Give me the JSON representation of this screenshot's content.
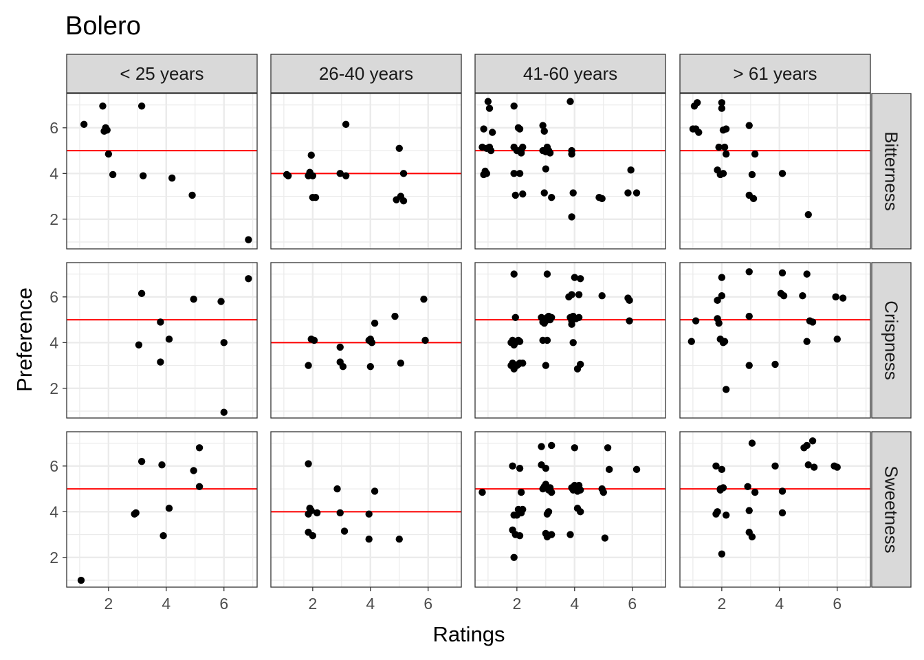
{
  "chart_data": {
    "type": "scatter",
    "title": "Bolero",
    "xlabel": "Ratings",
    "ylabel": "Preference",
    "facet_columns": [
      "< 25 years",
      "26-40 years",
      "41-60 years",
      "> 61 years"
    ],
    "facet_rows": [
      "Bitterness",
      "Crispness",
      "Sweetness"
    ],
    "xlim": [
      0.55,
      7.15
    ],
    "ylim": [
      0.7,
      7.5
    ],
    "x_ticks": [
      2,
      4,
      6
    ],
    "y_ticks": [
      2,
      4,
      6
    ],
    "grid": true,
    "reference_line_color": "#ff0000",
    "point_color": "#000000",
    "panels": [
      {
        "row": 0,
        "col": 0,
        "hline": 5,
        "points": [
          [
            1.15,
            6.15
          ],
          [
            1.8,
            6.95
          ],
          [
            1.85,
            5.85
          ],
          [
            1.9,
            6.0
          ],
          [
            1.95,
            5.9
          ],
          [
            2.0,
            4.85
          ],
          [
            2.15,
            3.95
          ],
          [
            3.15,
            6.95
          ],
          [
            3.2,
            3.9
          ],
          [
            4.2,
            3.8
          ],
          [
            4.9,
            3.05
          ],
          [
            6.85,
            1.1
          ]
        ]
      },
      {
        "row": 0,
        "col": 1,
        "hline": 4,
        "points": [
          [
            1.1,
            3.95
          ],
          [
            1.15,
            3.9
          ],
          [
            1.85,
            3.9
          ],
          [
            1.9,
            4.05
          ],
          [
            1.95,
            4.8
          ],
          [
            2.0,
            3.9
          ],
          [
            2.0,
            2.95
          ],
          [
            2.1,
            2.95
          ],
          [
            2.95,
            4.0
          ],
          [
            3.15,
            6.15
          ],
          [
            3.15,
            3.9
          ],
          [
            4.9,
            2.85
          ],
          [
            5.0,
            5.1
          ],
          [
            5.05,
            3.0
          ],
          [
            5.15,
            4.0
          ],
          [
            5.15,
            2.8
          ]
        ]
      },
      {
        "row": 1,
        "col": 0,
        "hline": 5,
        "points": [
          [
            3.05,
            3.9
          ],
          [
            3.15,
            6.15
          ],
          [
            3.8,
            4.9
          ],
          [
            3.8,
            3.15
          ],
          [
            4.1,
            4.15
          ],
          [
            4.95,
            5.9
          ],
          [
            5.9,
            5.8
          ],
          [
            6.0,
            4.0
          ],
          [
            6.0,
            0.95
          ],
          [
            6.85,
            6.8
          ]
        ]
      },
      {
        "row": 1,
        "col": 1,
        "hline": 4,
        "points": [
          [
            1.85,
            3.0
          ],
          [
            1.95,
            4.15
          ],
          [
            2.05,
            4.1
          ],
          [
            2.95,
            3.8
          ],
          [
            2.95,
            3.15
          ],
          [
            3.05,
            2.95
          ],
          [
            3.95,
            4.1
          ],
          [
            4.0,
            4.15
          ],
          [
            4.05,
            4.0
          ],
          [
            4.0,
            2.95
          ],
          [
            4.15,
            4.85
          ],
          [
            4.85,
            5.15
          ],
          [
            5.05,
            3.1
          ],
          [
            5.85,
            5.9
          ],
          [
            5.9,
            4.1
          ]
        ]
      },
      {
        "row": 2,
        "col": 0,
        "hline": 5,
        "points": [
          [
            1.05,
            1.0
          ],
          [
            2.9,
            3.9
          ],
          [
            2.95,
            3.95
          ],
          [
            3.15,
            6.2
          ],
          [
            3.85,
            6.05
          ],
          [
            3.9,
            2.95
          ],
          [
            4.1,
            4.15
          ],
          [
            4.95,
            5.8
          ],
          [
            5.15,
            6.8
          ],
          [
            5.15,
            5.1
          ]
        ]
      },
      {
        "row": 2,
        "col": 1,
        "hline": 4,
        "points": [
          [
            1.85,
            6.1
          ],
          [
            1.85,
            3.9
          ],
          [
            1.85,
            3.1
          ],
          [
            1.9,
            4.15
          ],
          [
            1.95,
            4.05
          ],
          [
            2.0,
            2.95
          ],
          [
            2.15,
            3.95
          ],
          [
            2.85,
            5.0
          ],
          [
            2.95,
            3.95
          ],
          [
            3.1,
            3.15
          ],
          [
            3.95,
            3.9
          ],
          [
            3.95,
            2.8
          ],
          [
            4.15,
            4.9
          ],
          [
            5.0,
            2.8
          ]
        ]
      },
      {
        "row": 0,
        "col": 3,
        "hline": 5,
        "points": [
          [
            1.0,
            5.95
          ],
          [
            1.05,
            6.95
          ],
          [
            1.1,
            5.95
          ],
          [
            1.15,
            7.1
          ],
          [
            1.2,
            5.8
          ],
          [
            1.85,
            4.15
          ],
          [
            1.9,
            5.15
          ],
          [
            1.95,
            3.95
          ],
          [
            2.0,
            6.85
          ],
          [
            2.0,
            7.1
          ],
          [
            2.05,
            5.9
          ],
          [
            2.05,
            4.0
          ],
          [
            2.1,
            5.15
          ],
          [
            2.15,
            5.95
          ],
          [
            2.15,
            4.85
          ],
          [
            2.95,
            6.1
          ],
          [
            2.95,
            3.05
          ],
          [
            3.05,
            3.95
          ],
          [
            3.1,
            2.9
          ],
          [
            3.15,
            4.85
          ],
          [
            4.1,
            4.0
          ],
          [
            5.0,
            2.2
          ]
        ]
      },
      {
        "row": 1,
        "col": 3,
        "hline": 5,
        "points": [
          [
            0.95,
            4.05
          ],
          [
            1.1,
            4.95
          ],
          [
            1.85,
            5.85
          ],
          [
            1.85,
            5.05
          ],
          [
            1.9,
            4.85
          ],
          [
            1.95,
            4.15
          ],
          [
            2.0,
            6.85
          ],
          [
            2.0,
            6.05
          ],
          [
            2.05,
            4.0
          ],
          [
            2.1,
            4.05
          ],
          [
            2.15,
            1.95
          ],
          [
            2.95,
            7.1
          ],
          [
            2.95,
            5.15
          ],
          [
            2.95,
            3.0
          ],
          [
            3.85,
            3.05
          ],
          [
            4.05,
            6.15
          ],
          [
            4.1,
            7.05
          ],
          [
            4.15,
            6.05
          ],
          [
            4.8,
            6.05
          ],
          [
            4.95,
            7.0
          ],
          [
            4.95,
            4.05
          ],
          [
            5.05,
            4.95
          ],
          [
            5.15,
            4.9
          ],
          [
            5.95,
            6.0
          ],
          [
            6.0,
            4.15
          ],
          [
            6.2,
            5.95
          ]
        ]
      },
      {
        "row": 2,
        "col": 3,
        "hline": 5,
        "points": [
          [
            1.8,
            6.0
          ],
          [
            1.8,
            3.9
          ],
          [
            1.85,
            4.0
          ],
          [
            1.95,
            5.0
          ],
          [
            1.95,
            4.95
          ],
          [
            2.0,
            5.85
          ],
          [
            2.0,
            2.15
          ],
          [
            2.05,
            5.05
          ],
          [
            2.15,
            3.85
          ],
          [
            2.9,
            5.1
          ],
          [
            2.95,
            4.05
          ],
          [
            2.95,
            3.1
          ],
          [
            3.05,
            7.0
          ],
          [
            3.05,
            2.9
          ],
          [
            3.15,
            4.85
          ],
          [
            3.85,
            6.0
          ],
          [
            4.1,
            4.9
          ],
          [
            4.1,
            3.95
          ],
          [
            4.85,
            6.8
          ],
          [
            4.95,
            6.9
          ],
          [
            5.0,
            6.05
          ],
          [
            5.15,
            7.1
          ],
          [
            5.2,
            5.95
          ],
          [
            5.9,
            6.0
          ],
          [
            6.0,
            5.95
          ]
        ]
      },
      {
        "row": 0,
        "col": 2,
        "hline": 5,
        "points": [
          [
            0.8,
            5.15
          ],
          [
            0.85,
            5.95
          ],
          [
            0.85,
            3.95
          ],
          [
            0.9,
            4.1
          ],
          [
            0.95,
            5.1
          ],
          [
            0.95,
            4.0
          ],
          [
            1.0,
            7.15
          ],
          [
            1.05,
            6.85
          ],
          [
            1.05,
            5.15
          ],
          [
            1.1,
            5.0
          ],
          [
            1.15,
            5.8
          ],
          [
            1.9,
            6.95
          ],
          [
            1.9,
            5.15
          ],
          [
            1.9,
            4.0
          ],
          [
            1.95,
            3.05
          ],
          [
            2.0,
            5.0
          ],
          [
            2.05,
            6.0
          ],
          [
            2.1,
            5.95
          ],
          [
            2.1,
            4.0
          ],
          [
            2.15,
            5.05
          ],
          [
            2.15,
            4.9
          ],
          [
            2.2,
            5.15
          ],
          [
            2.2,
            3.1
          ],
          [
            2.9,
            6.1
          ],
          [
            2.9,
            5.0
          ],
          [
            2.95,
            5.85
          ],
          [
            2.95,
            3.15
          ],
          [
            3.0,
            4.2
          ],
          [
            3.0,
            4.95
          ],
          [
            3.05,
            5.15
          ],
          [
            3.1,
            5.0
          ],
          [
            3.15,
            4.9
          ],
          [
            3.2,
            2.95
          ],
          [
            3.85,
            7.15
          ],
          [
            3.9,
            5.0
          ],
          [
            3.9,
            4.85
          ],
          [
            3.95,
            3.15
          ],
          [
            3.9,
            2.1
          ],
          [
            4.85,
            2.95
          ],
          [
            4.95,
            2.9
          ],
          [
            5.85,
            3.15
          ],
          [
            5.95,
            4.15
          ],
          [
            6.15,
            3.15
          ]
        ]
      },
      {
        "row": 1,
        "col": 2,
        "hline": 5,
        "points": [
          [
            1.8,
            4.0
          ],
          [
            1.8,
            3.0
          ],
          [
            1.85,
            4.1
          ],
          [
            1.85,
            3.1
          ],
          [
            1.9,
            7.0
          ],
          [
            1.9,
            3.9
          ],
          [
            1.9,
            2.85
          ],
          [
            1.95,
            5.1
          ],
          [
            1.95,
            4.0
          ],
          [
            2.0,
            3.0
          ],
          [
            2.05,
            4.1
          ],
          [
            2.05,
            3.05
          ],
          [
            2.1,
            3.1
          ],
          [
            2.1,
            4.05
          ],
          [
            2.2,
            3.1
          ],
          [
            2.85,
            5.1
          ],
          [
            2.9,
            4.9
          ],
          [
            2.9,
            4.1
          ],
          [
            2.95,
            4.85
          ],
          [
            3.0,
            3.0
          ],
          [
            3.0,
            4.95
          ],
          [
            3.05,
            7.0
          ],
          [
            3.05,
            5.1
          ],
          [
            3.05,
            4.1
          ],
          [
            3.1,
            5.15
          ],
          [
            3.15,
            5.0
          ],
          [
            3.2,
            5.1
          ],
          [
            3.8,
            6.0
          ],
          [
            3.85,
            5.1
          ],
          [
            3.9,
            6.1
          ],
          [
            3.9,
            4.95
          ],
          [
            3.9,
            4.8
          ],
          [
            3.95,
            5.15
          ],
          [
            3.95,
            4.0
          ],
          [
            4.0,
            6.85
          ],
          [
            4.05,
            5.05
          ],
          [
            4.1,
            2.85
          ],
          [
            4.15,
            6.1
          ],
          [
            4.15,
            5.1
          ],
          [
            4.2,
            6.8
          ],
          [
            4.2,
            3.05
          ],
          [
            4.95,
            6.05
          ],
          [
            5.85,
            5.95
          ],
          [
            5.9,
            5.85
          ],
          [
            5.9,
            4.95
          ]
        ]
      },
      {
        "row": 2,
        "col": 2,
        "hline": 5,
        "points": [
          [
            0.8,
            4.85
          ],
          [
            1.85,
            6.0
          ],
          [
            1.85,
            3.2
          ],
          [
            1.9,
            3.85
          ],
          [
            1.9,
            2.0
          ],
          [
            1.95,
            3.0
          ],
          [
            2.0,
            3.85
          ],
          [
            2.05,
            4.1
          ],
          [
            2.1,
            2.95
          ],
          [
            2.1,
            5.9
          ],
          [
            2.15,
            3.95
          ],
          [
            2.15,
            4.85
          ],
          [
            2.2,
            4.1
          ],
          [
            2.85,
            6.85
          ],
          [
            2.85,
            6.05
          ],
          [
            2.9,
            5.0
          ],
          [
            2.95,
            5.1
          ],
          [
            3.0,
            5.9
          ],
          [
            3.0,
            5.2
          ],
          [
            3.0,
            3.05
          ],
          [
            3.05,
            3.9
          ],
          [
            3.05,
            2.9
          ],
          [
            3.1,
            4.0
          ],
          [
            3.1,
            4.95
          ],
          [
            3.15,
            5.05
          ],
          [
            3.2,
            6.9
          ],
          [
            3.2,
            3.0
          ],
          [
            3.2,
            4.85
          ],
          [
            3.85,
            3.0
          ],
          [
            3.9,
            5.05
          ],
          [
            3.95,
            4.95
          ],
          [
            4.0,
            6.8
          ],
          [
            4.0,
            5.15
          ],
          [
            4.05,
            5.1
          ],
          [
            4.1,
            4.9
          ],
          [
            4.1,
            4.15
          ],
          [
            4.15,
            5.15
          ],
          [
            4.2,
            4.0
          ],
          [
            4.2,
            4.95
          ],
          [
            4.95,
            5.0
          ],
          [
            5.0,
            4.85
          ],
          [
            5.05,
            2.85
          ],
          [
            5.15,
            6.8
          ],
          [
            5.2,
            5.85
          ],
          [
            6.15,
            5.85
          ]
        ]
      }
    ]
  }
}
